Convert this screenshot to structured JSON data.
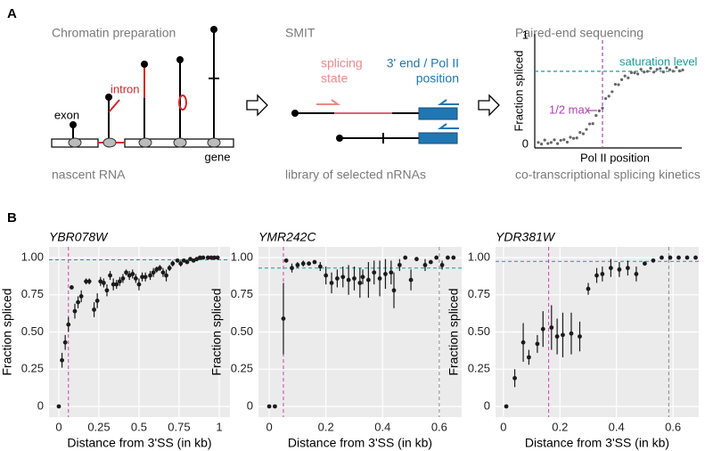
{
  "panel_a": {
    "label": "A",
    "chromatin": {
      "title": "Chromatin preparation",
      "exon": "exon",
      "intron": "intron",
      "gene": "gene",
      "caption": "nascent RNA"
    },
    "smit": {
      "title": "SMIT",
      "splicing_state": [
        "splicing",
        "state"
      ],
      "end_position": [
        "3' end / Pol II",
        "position"
      ],
      "caption": "library of selected nRNAs"
    },
    "sequencing": {
      "title": "Paired-end sequencing",
      "y_label": "Fraction spliced",
      "x_label": "Pol II position",
      "y_top": "1",
      "y_bottom": "0",
      "saturation": "saturation level",
      "half_max": "1/2 max",
      "caption": "co-transcriptional splicing kinetics"
    }
  },
  "panel_b_label": "B",
  "chart_data": [
    {
      "type": "scatter",
      "title": "YBR078W",
      "x_label": "Distance from 3'SS (in kb)",
      "y_label": "Fraction spliced",
      "xlim": [
        -0.061,
        1.067
      ],
      "ylim": [
        -0.072,
        1.072
      ],
      "xticks": [
        0,
        0.25,
        0.5,
        0.75,
        1
      ],
      "yticks": [
        0,
        0.25,
        {
          "value": 0.5,
          "label": "0.50"
        },
        0.75,
        {
          "value": 1,
          "label": "1.00"
        }
      ],
      "grid": true,
      "color": "#1a1a1a",
      "x": [
        0.0,
        0.02,
        0.04,
        0.06,
        0.08,
        0.1,
        0.12,
        0.14,
        0.17,
        0.19,
        0.22,
        0.24,
        0.26,
        0.28,
        0.3,
        0.32,
        0.34,
        0.36,
        0.38,
        0.4,
        0.42,
        0.44,
        0.46,
        0.48,
        0.5,
        0.52,
        0.54,
        0.57,
        0.59,
        0.61,
        0.63,
        0.65,
        0.67,
        0.69,
        0.71,
        0.74,
        0.76,
        0.78,
        0.8,
        0.82,
        0.84,
        0.86,
        0.88,
        0.9,
        0.93,
        0.95,
        0.97,
        0.99
      ],
      "values": [
        0,
        0.31,
        0.43,
        0.55,
        0.8,
        0.64,
        0.7,
        0.74,
        0.84,
        0.84,
        0.65,
        0.71,
        0.84,
        0.83,
        0.78,
        0.88,
        0.82,
        0.82,
        0.84,
        0.86,
        0.9,
        0.88,
        0.89,
        0.86,
        0.82,
        0.87,
        0.87,
        0.88,
        0.9,
        0.92,
        0.93,
        0.9,
        0.88,
        0.93,
        0.96,
        0.98,
        0.96,
        0.98,
        0.97,
        0.99,
        0.98,
        0.99,
        1.0,
        1.0,
        1.0,
        1.0,
        1.0,
        1.0
      ],
      "errors": [
        null,
        0.05,
        0.05,
        0.05,
        null,
        0.05,
        0.04,
        0.04,
        0.02,
        0.02,
        0.05,
        0.05,
        0.03,
        0.03,
        0.04,
        0.03,
        0.04,
        0.03,
        0.03,
        0.03,
        0.02,
        0.03,
        0.03,
        0.03,
        0.04,
        0.03,
        0.03,
        0.03,
        0.03,
        0.02,
        0.02,
        0.03,
        0.04,
        0.02,
        0.02,
        null,
        0.02,
        null,
        0.01,
        null,
        null,
        null,
        null,
        null,
        null,
        null,
        null,
        null
      ],
      "saturation_level": 0.985,
      "half_max_x": 0.06
    },
    {
      "type": "scatter",
      "title": "YMR242C",
      "x_label": "Distance from 3'SS (in kb)",
      "y_label": "Fraction spliced",
      "xlim": [
        -0.038,
        0.679
      ],
      "ylim": [
        -0.072,
        1.072
      ],
      "xticks": [
        0,
        0.2,
        0.4,
        0.6
      ],
      "yticks": [
        0,
        0.25,
        {
          "value": 0.5,
          "label": "0.50"
        },
        0.75,
        {
          "value": 1,
          "label": "1.00"
        }
      ],
      "grid": true,
      "color": "#1a1a1a",
      "x": [
        0.0,
        0.02,
        0.05,
        0.06,
        0.08,
        0.1,
        0.12,
        0.14,
        0.16,
        0.18,
        0.2,
        0.22,
        0.24,
        0.26,
        0.28,
        0.3,
        0.32,
        0.33,
        0.35,
        0.37,
        0.39,
        0.41,
        0.43,
        0.44,
        0.46,
        0.48,
        0.5,
        0.52,
        0.55,
        0.57,
        0.59,
        0.61,
        0.63,
        0.65
      ],
      "values": [
        0,
        0,
        0.59,
        0.98,
        0.93,
        0.95,
        0.96,
        0.96,
        0.97,
        0.94,
        0.88,
        0.83,
        0.86,
        0.87,
        0.85,
        0.86,
        0.83,
        0.87,
        0.85,
        0.9,
        0.86,
        0.89,
        0.9,
        0.78,
        0.95,
        1.0,
        0.85,
        0.99,
        0.95,
        0.97,
        1.0,
        0.95,
        1.0,
        1.0
      ],
      "errors": [
        null,
        null,
        0.24,
        null,
        0.03,
        0.02,
        0.02,
        0.01,
        0.01,
        0.03,
        0.06,
        0.07,
        0.06,
        0.07,
        0.1,
        0.08,
        0.1,
        0.05,
        0.12,
        0.08,
        0.12,
        0.1,
        0.08,
        0.12,
        0.04,
        null,
        0.07,
        null,
        0.04,
        null,
        null,
        0.03,
        null,
        null
      ],
      "saturation_level": 0.93,
      "half_max_x": 0.05,
      "gray_line_x": 0.6
    },
    {
      "type": "scatter",
      "title": "YDR381W",
      "x_label": "Distance from 3'SS (in kb)",
      "y_label": "Fraction spliced",
      "xlim": [
        -0.028,
        0.691
      ],
      "ylim": [
        -0.072,
        1.072
      ],
      "xticks": [
        0,
        0.2,
        0.4,
        0.6
      ],
      "yticks": [
        0,
        0.25,
        {
          "value": 0.5,
          "label": "0.50"
        },
        0.75,
        {
          "value": 1,
          "label": "1.00"
        }
      ],
      "grid": true,
      "color": "#1a1a1a",
      "x": [
        0.01,
        0.04,
        0.07,
        0.09,
        0.12,
        0.14,
        0.17,
        0.19,
        0.21,
        0.24,
        0.27,
        0.3,
        0.33,
        0.35,
        0.38,
        0.41,
        0.44,
        0.47,
        0.5,
        0.53,
        0.56,
        0.59,
        0.62,
        0.65,
        0.68
      ],
      "values": [
        0,
        0.19,
        0.43,
        0.33,
        0.42,
        0.52,
        0.53,
        0.47,
        0.48,
        0.49,
        0.47,
        0.79,
        0.88,
        0.89,
        0.93,
        0.92,
        0.93,
        0.89,
        0.96,
        0.98,
        1.0,
        1.0,
        1.0,
        1.0,
        1.0
      ],
      "errors": [
        null,
        0.06,
        0.13,
        0.05,
        0.06,
        0.12,
        0.15,
        0.12,
        0.15,
        0.14,
        0.1,
        0.04,
        0.05,
        0.05,
        0.06,
        0.05,
        0.05,
        0.05,
        null,
        null,
        null,
        null,
        null,
        null,
        null
      ],
      "saturation_level": 0.975,
      "half_max_x": 0.16,
      "gray_line_x": 0.585
    }
  ]
}
